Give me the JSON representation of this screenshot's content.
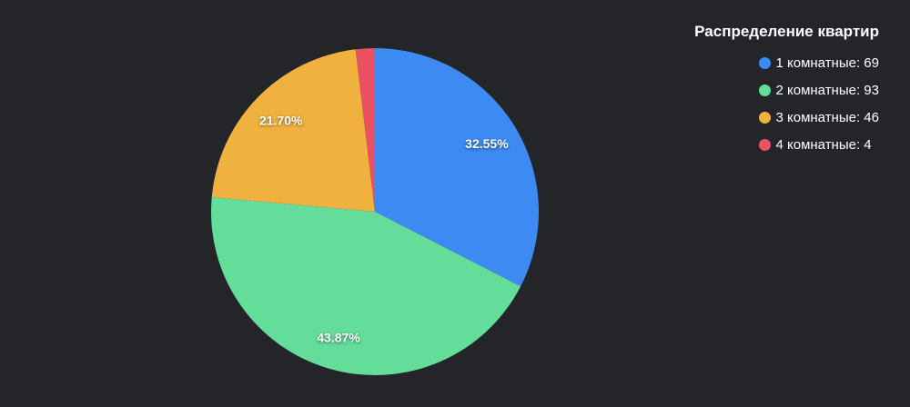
{
  "chart_data": {
    "type": "pie",
    "title": "Распределение квартир",
    "legend_position": "right",
    "direction": "clockwise",
    "start_angle": "top",
    "slices": [
      {
        "name": "1 комнатные",
        "legend_label": "1 комнатные: 69",
        "value": 69,
        "percent_label": "32.55%",
        "color": "#3d8bf2"
      },
      {
        "name": "2 комнатные",
        "legend_label": "2 комнатные: 93",
        "value": 93,
        "percent_label": "43.87%",
        "color": "#64dd9b"
      },
      {
        "name": "3 комнатные",
        "legend_label": "3 комнатные: 46",
        "value": 46,
        "percent_label": "21.70%",
        "color": "#f0b13f"
      },
      {
        "name": "4 комнатные",
        "legend_label": "4 комнатные: 4",
        "value": 4,
        "percent_label": "",
        "color": "#e85263"
      }
    ]
  },
  "colors": {
    "background": "#232528",
    "label_text": "#ffffff"
  }
}
